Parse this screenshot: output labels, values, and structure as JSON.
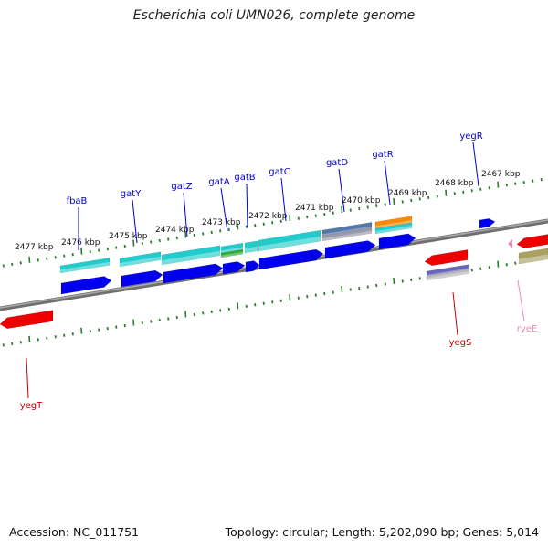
{
  "title": "Escherichia coli UMN026, complete genome",
  "footer": {
    "accession": "Accession: NC_011751",
    "topology": "Topology: circular; Length: 5,202,090 bp; Genes: 5,014"
  },
  "kbp_labels": [
    "2477 kbp",
    "2476 kbp",
    "2475 kbp",
    "2474 kbp",
    "2473 kbp",
    "2472 kbp",
    "2471 kbp",
    "2470 kbp",
    "2469 kbp",
    "2468 kbp",
    "2467 kbp"
  ],
  "genes_top": [
    "fbaB",
    "gatY",
    "gatZ",
    "gatA",
    "gatB",
    "gatC",
    "gatD",
    "gatR",
    "yegR"
  ],
  "genes_bottom": [
    "yegT",
    "yegS",
    "ryeE"
  ],
  "colors": {
    "forward_gene_label": "#0000cc",
    "reverse_gene_label": "#cc0000",
    "rna_label": "#ee88bb",
    "cds_blue": "#0000ee",
    "cds_red": "#ee0000",
    "feature_cyan": "#22cccc",
    "feature_green": "#33aa33",
    "feature_steel": "#5577aa",
    "feature_orange": "#ff8800",
    "feature_olive": "#aaa060",
    "feature_slate": "#6666bb",
    "tick_green": "#2e7d2e",
    "backbone": "#808080"
  }
}
